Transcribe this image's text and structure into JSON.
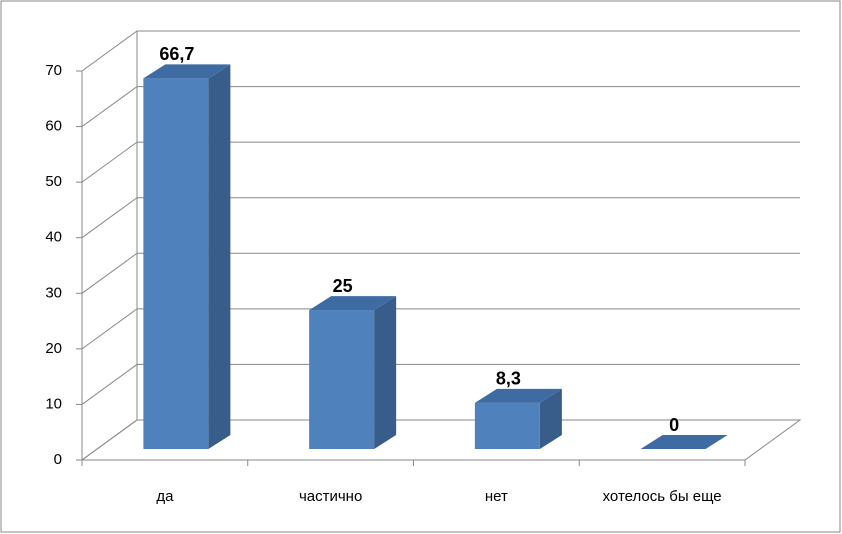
{
  "chart_data": {
    "type": "bar3d",
    "categories": [
      "да",
      "частично",
      "нет",
      "хотелось бы еще"
    ],
    "values": [
      66.7,
      25,
      8.3,
      0
    ],
    "value_labels": [
      "66,7",
      "25",
      "8,3",
      "0"
    ],
    "color": "#4f81bd",
    "ylim": [
      0,
      70
    ],
    "yticks": [
      0,
      10,
      20,
      30,
      40,
      50,
      60,
      70
    ],
    "grid": true
  }
}
